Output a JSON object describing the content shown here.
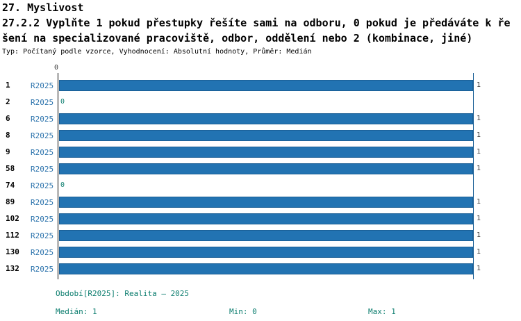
{
  "header": {
    "title": "27. Myslivost",
    "subtitle_line1": "27.2.2 Vyplňte 1 pokud přestupky řešíte sami na odboru, 0 pokud je předáváte k ře",
    "subtitle_line2": "šení na specializované pracoviště, odbor, oddělení nebo 2 (kombinace, jiné)",
    "meta": "Typ: Počítaný podle vzorce, Vyhodnocení: Absolutní hodnoty, Průměr: Medián"
  },
  "chart_data": {
    "type": "bar",
    "orientation": "horizontal",
    "title": "27.2.2 Vyplňte 1 pokud přestupky řešíte sami na odboru, 0 pokud je předáváte k řešení na specializované pracoviště, odbor, oddělení nebo 2 (kombinace, jiné)",
    "categories": [
      "1",
      "2",
      "6",
      "8",
      "9",
      "58",
      "74",
      "89",
      "102",
      "112",
      "130",
      "132"
    ],
    "series": [
      {
        "name": "R2025",
        "values": [
          1,
          0,
          1,
          1,
          1,
          1,
          0,
          1,
          1,
          1,
          1,
          1
        ]
      }
    ],
    "xlim": [
      0,
      1
    ],
    "x_axis_zero_label": "0",
    "grid": false,
    "legend_position": "none"
  },
  "footer": {
    "period": "Období[R2025]: Realita – 2025",
    "median": "Medián: 1",
    "min": "Min: 0",
    "max": "Max: 1"
  },
  "colors": {
    "bar": "#2273b2",
    "bar_border": "#1a5f96",
    "series_label": "#2d74ad",
    "teal_text": "#0b7d6e",
    "value_label": "#3c3c3c",
    "axis_left": "#000000",
    "axis_right": "#1a5f96"
  }
}
